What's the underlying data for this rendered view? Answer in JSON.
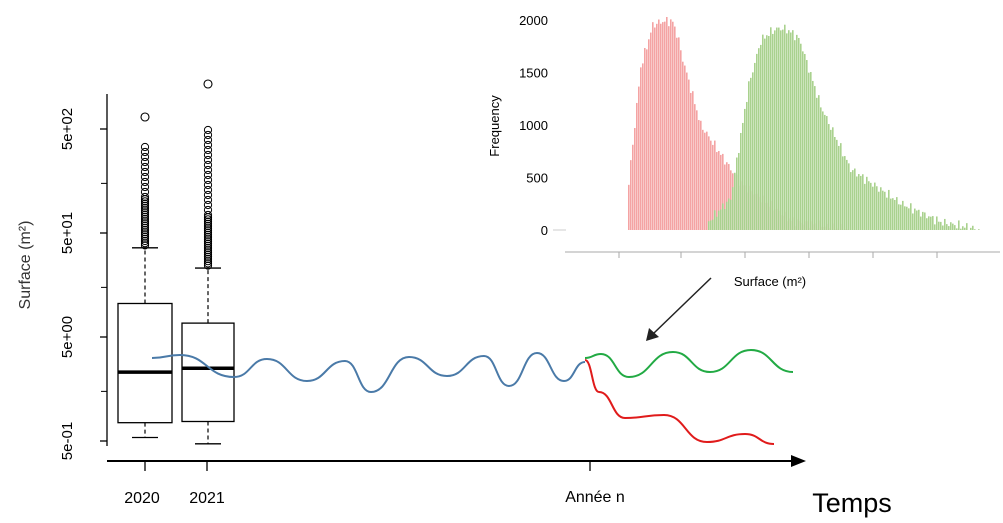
{
  "boxplot": {
    "y_axis_label": "Surface (m²)",
    "y_ticks": [
      "5e-01",
      "5e+00",
      "5e+01",
      "5e+02"
    ],
    "scale": "log",
    "categories": [
      "2020",
      "2021"
    ],
    "boxes": [
      {
        "label": "2020",
        "q1": 0.75,
        "median": 2.3,
        "q3": 10.5,
        "whisker_low": 0.54,
        "whisker_high": 36
      },
      {
        "label": "2021",
        "q1": 0.77,
        "median": 2.5,
        "q3": 6.8,
        "whisker_low": 0.47,
        "whisker_high": 23
      }
    ]
  },
  "timeline": {
    "x_labels": [
      "2020",
      "2021",
      "Année n"
    ],
    "axis_title": "Temps",
    "colors": {
      "trend": "#4a7aa8",
      "up": "#22aa44",
      "down": "#e01b1b"
    }
  },
  "chart_data": {
    "type": "bar",
    "xlabel": "Surface (m²)",
    "ylabel": "Frequency",
    "y_ticks": [
      0,
      500,
      1000,
      1500,
      2000
    ],
    "ylim": [
      0,
      2000
    ],
    "series": [
      {
        "color": "#f4a3a3",
        "peak": 2000
      },
      {
        "color": "#a9d18e",
        "peak": 1920
      }
    ]
  }
}
